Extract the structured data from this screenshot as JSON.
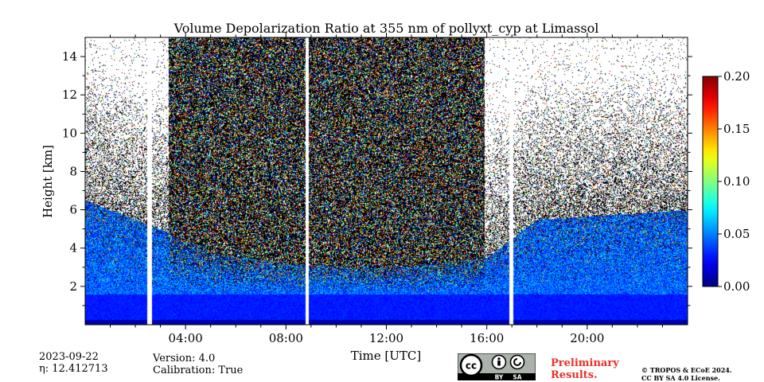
{
  "chart_data": {
    "type": "heatmap",
    "title": "Volume Depolarization Ratio at 355 nm of pollyxt_cyp at Limassol",
    "xlabel": "Time [UTC]",
    "ylabel": "Height [km]",
    "x_range_hours": [
      0,
      24
    ],
    "y_range_km": [
      0,
      15
    ],
    "x_ticks": [
      {
        "hour": 4,
        "label": "04:00"
      },
      {
        "hour": 8,
        "label": "08:00"
      },
      {
        "hour": 12,
        "label": "12:00"
      },
      {
        "hour": 16,
        "label": "16:00"
      },
      {
        "hour": 20,
        "label": "20:00"
      }
    ],
    "y_ticks": [
      {
        "value": 2,
        "label": "2"
      },
      {
        "value": 4,
        "label": "4"
      },
      {
        "value": 6,
        "label": "6"
      },
      {
        "value": 8,
        "label": "8"
      },
      {
        "value": 10,
        "label": "10"
      },
      {
        "value": 12,
        "label": "12"
      },
      {
        "value": 14,
        "label": "14"
      }
    ],
    "colorbar": {
      "range": [
        0.0,
        0.2
      ],
      "ticks": [
        "0.00",
        "0.05",
        "0.10",
        "0.15",
        "0.20"
      ],
      "colormap": "jet"
    },
    "data_gaps_hours": [
      [
        2.45,
        2.65
      ],
      [
        8.78,
        8.88
      ],
      [
        16.88,
        17.05
      ]
    ],
    "layers": {
      "near_surface_depol": 0.03,
      "aerosol_layer_top_km_by_hour": [
        [
          0,
          6.5
        ],
        [
          3,
          5.0
        ],
        [
          5,
          3.8
        ],
        [
          8,
          3.2
        ],
        [
          12,
          3.0
        ],
        [
          16,
          3.5
        ],
        [
          18,
          5.5
        ],
        [
          24,
          6.0
        ]
      ],
      "dense_noise_window_hours": [
        3.3,
        15.9
      ]
    }
  },
  "footer": {
    "date": "2023-09-22",
    "eta_label": "η: 12.412713",
    "version": "Version: 4.0",
    "calibration": "Calibration: True",
    "preliminary": [
      "Preliminary",
      "Results."
    ],
    "license_lines": [
      "© TROPOS & ECoE 2024.",
      "CC BY SA 4.0 License."
    ],
    "badge_by": "BY",
    "badge_sa": "SA"
  }
}
